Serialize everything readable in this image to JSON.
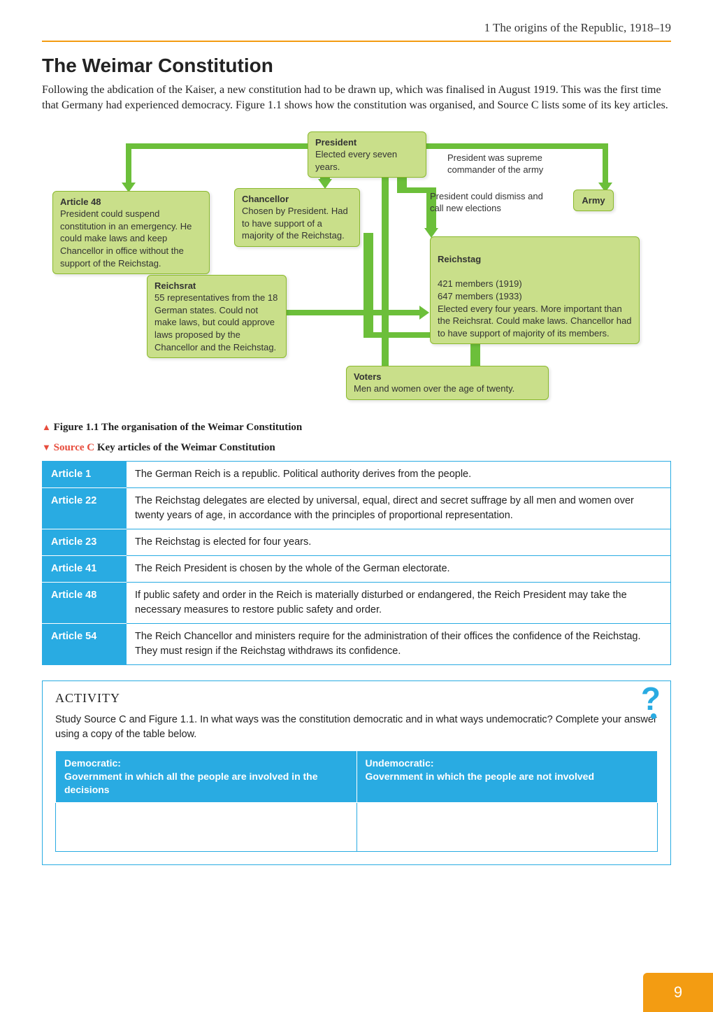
{
  "header": {
    "chapter_line": "1 The origins of the Republic, 1918–19"
  },
  "section": {
    "title": "The Weimar Constitution",
    "intro": "Following the abdication of the Kaiser, a new constitution had to be drawn up, which was finalised in August 1919. This was the first time that Germany had experienced democracy. Figure 1.1 shows how the constitution was organised, and Source C lists some of its key articles."
  },
  "diagram": {
    "type": "flowchart",
    "background_color": "#ffffff",
    "box_fill": "#c9df8a",
    "box_border": "#8ab92d",
    "arrow_color": "#6cbf3a",
    "nodes": {
      "president": {
        "title": "President",
        "body": "Elected every seven years."
      },
      "article48": {
        "title": "Article 48",
        "body": "President could suspend constitution in an emergency. He could make laws and keep Chancellor in office without the support of the Reichstag."
      },
      "chancellor": {
        "title": "Chancellor",
        "body": "Chosen by President. Had to have support of a majority of the Reichstag."
      },
      "army": {
        "title": "Army",
        "body": ""
      },
      "reichsrat": {
        "title": "Reichsrat",
        "body": "55 representatives from the 18 German states. Could not make laws, but could approve laws proposed by the Chancellor and the Reichstag."
      },
      "reichstag": {
        "title": "Reichstag",
        "body": "421 members (1919)\n647 members (1933)\nElected every four years. More important than the Reichsrat. Could make laws. Chancellor had to have support of majority of its members."
      },
      "voters": {
        "title": "Voters",
        "body": "Men and women over the age of twenty."
      }
    },
    "notes": {
      "commander": "President was supreme commander of the army",
      "dismiss": "President could dismiss and call new elections"
    }
  },
  "fig_caption": {
    "marker": "▲",
    "text": "Figure 1.1 The organisation of the Weimar Constitution"
  },
  "source_caption": {
    "marker": "▼",
    "label": "Source C",
    "rest": "Key articles of the Weimar Constitution"
  },
  "articles": [
    {
      "label": "Article 1",
      "text": "The German Reich is a republic. Political authority derives from the people."
    },
    {
      "label": "Article 22",
      "text": "The Reichstag delegates are elected by universal, equal, direct and secret suffrage by all men and women over twenty years of age, in accordance with the principles of proportional representation."
    },
    {
      "label": "Article 23",
      "text": "The Reichstag is elected for four years."
    },
    {
      "label": "Article 41",
      "text": "The Reich President is chosen by the whole of the German electorate."
    },
    {
      "label": "Article 48",
      "text": "If public safety and order in the Reich is materially disturbed or endangered, the Reich President may take the necessary measures to restore public safety and order."
    },
    {
      "label": "Article 54",
      "text": "The Reich Chancellor and ministers require for the administration of their offices the confidence of the Reichstag. They must resign if the Reichstag withdraws its confidence."
    }
  ],
  "activity": {
    "title": "ACTIVITY",
    "text": "Study Source C and Figure 1.1. In what ways was the constitution democratic and in what ways undemocratic? Complete your answer using a copy of the table below.",
    "col1": "Democratic:\nGovernment in which all the people are involved in the decisions",
    "col2": "Undemocratic:\nGovernment in which the people are not involved"
  },
  "page_number": "9",
  "colors": {
    "orange": "#f39c12",
    "blue": "#29abe2",
    "red": "#e74c3c"
  }
}
